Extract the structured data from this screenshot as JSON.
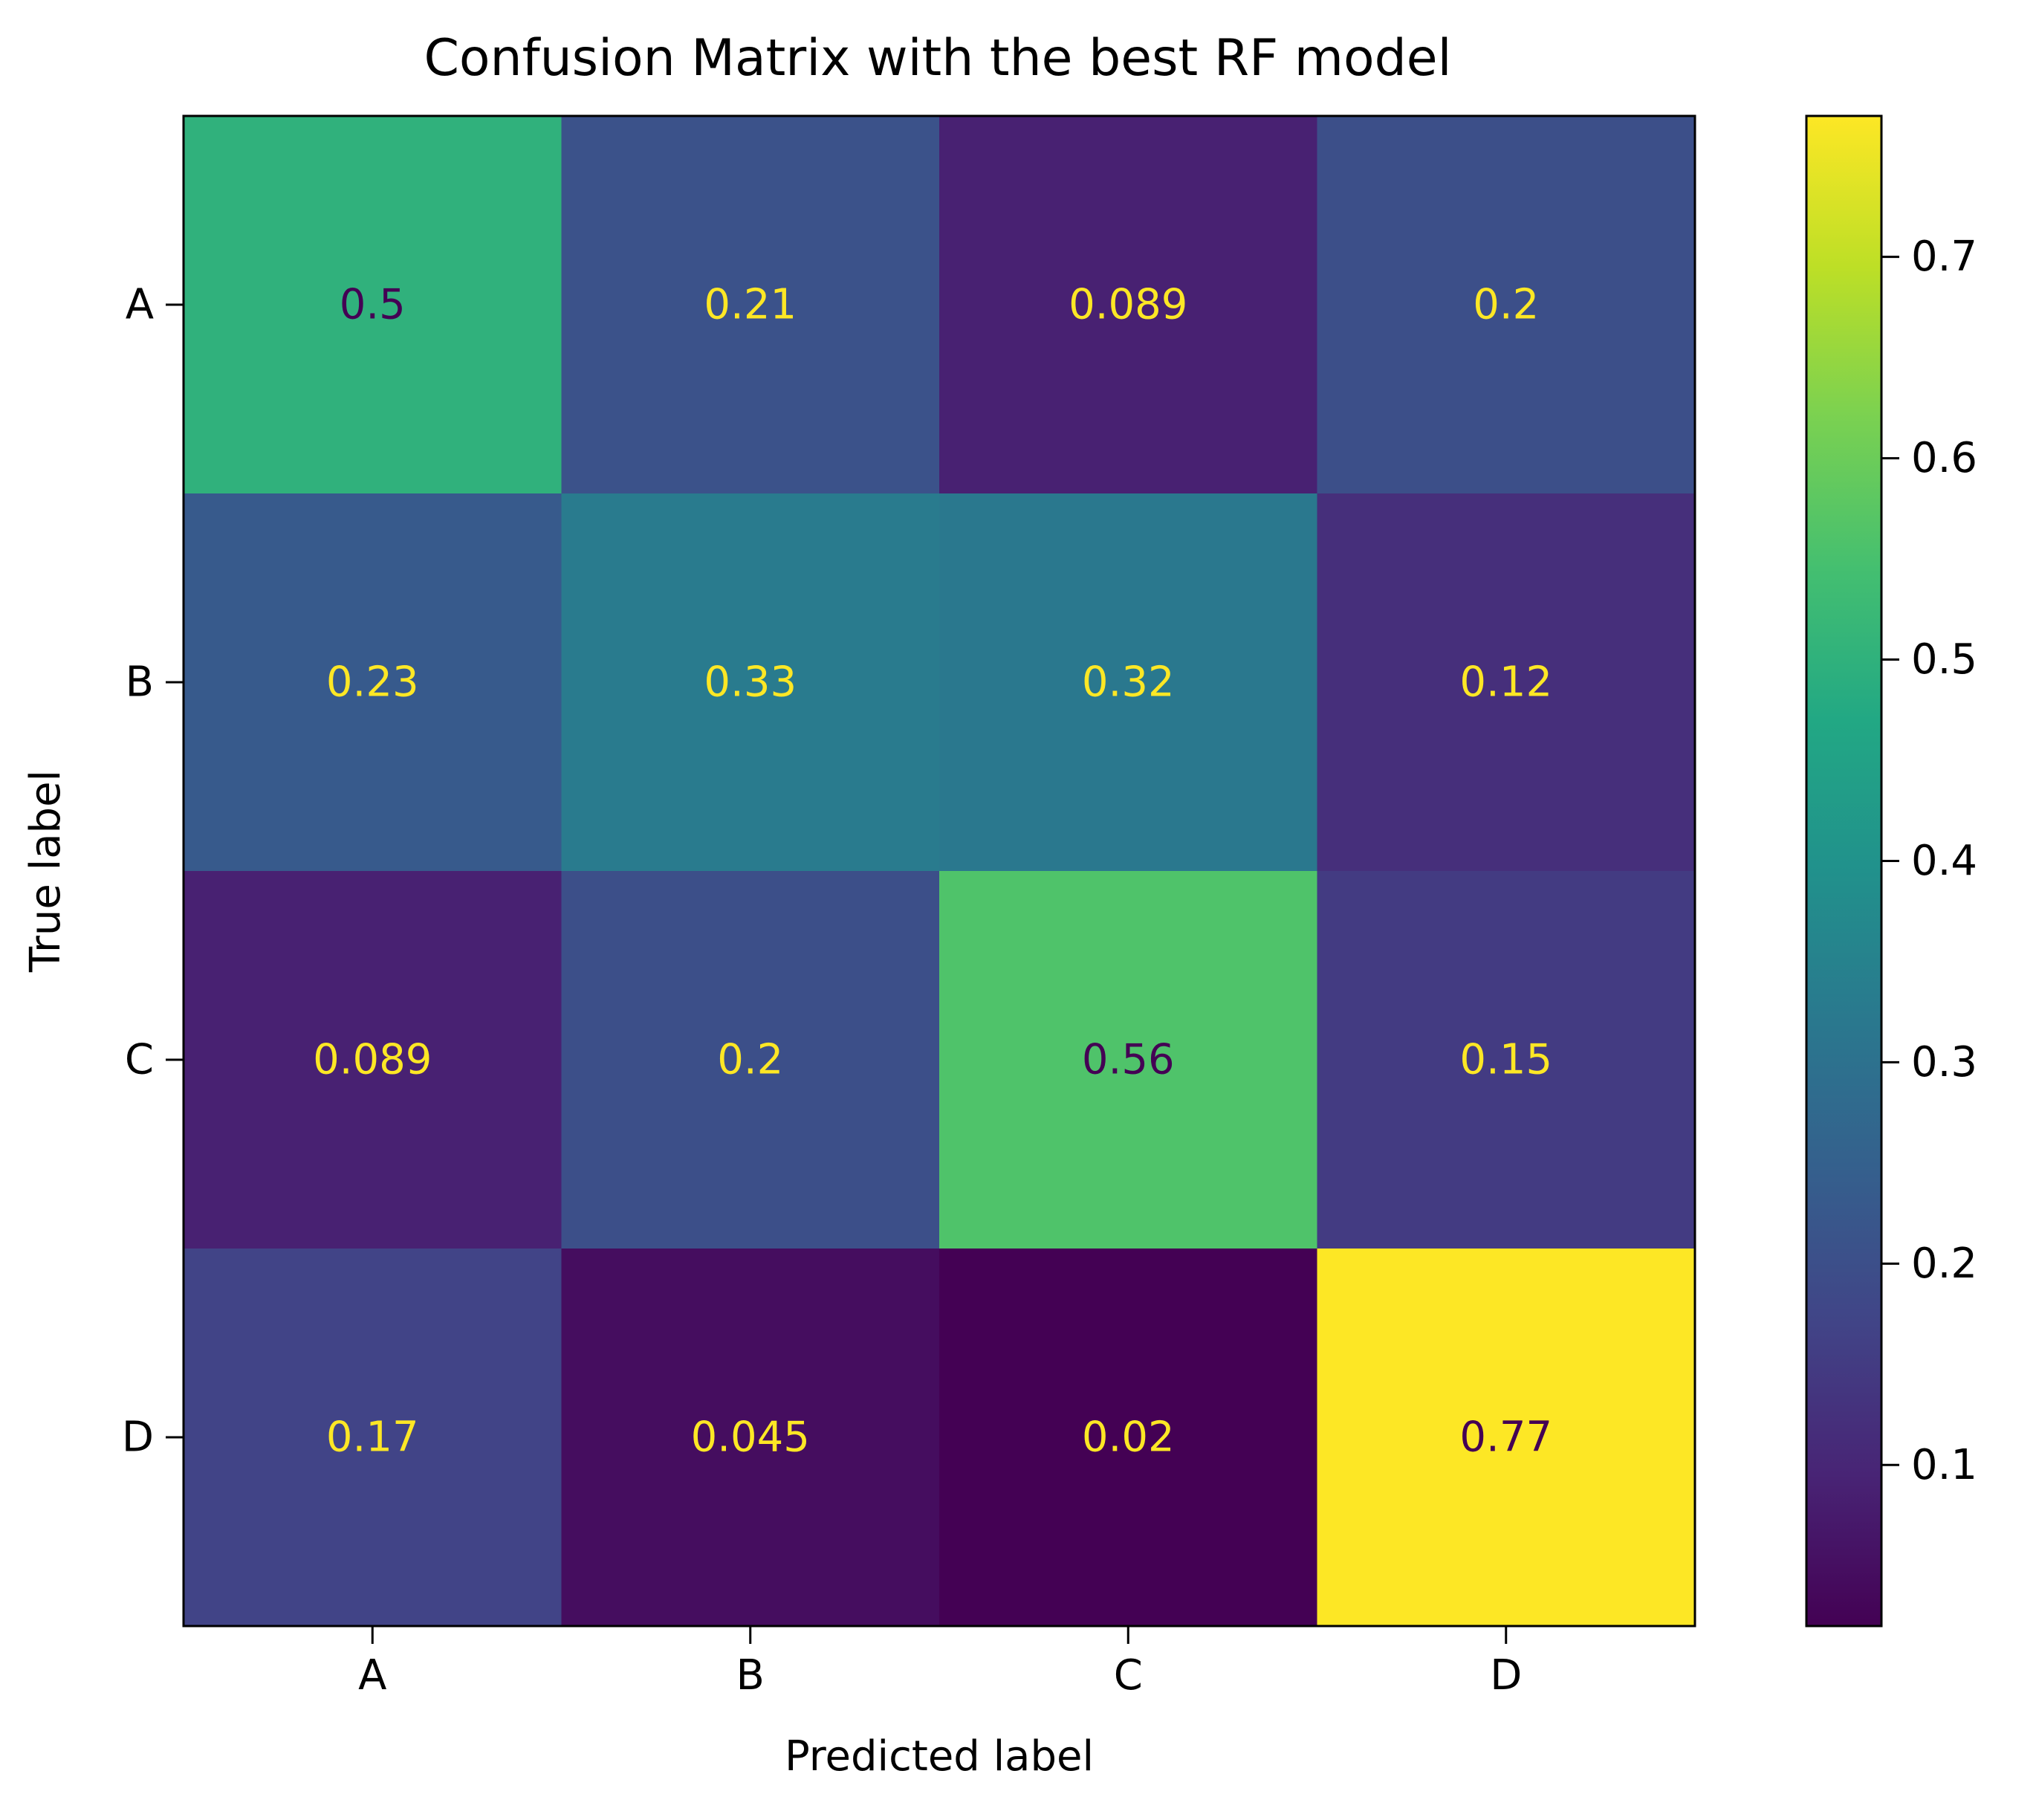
{
  "chart_data": {
    "type": "heatmap",
    "title": "Confusion Matrix with the best RF model",
    "xlabel": "Predicted label",
    "ylabel": "True label",
    "x_categories": [
      "A",
      "B",
      "C",
      "D"
    ],
    "y_categories": [
      "A",
      "B",
      "C",
      "D"
    ],
    "values": [
      [
        0.5,
        0.21,
        0.089,
        0.2
      ],
      [
        0.23,
        0.33,
        0.32,
        0.12
      ],
      [
        0.089,
        0.2,
        0.56,
        0.15
      ],
      [
        0.17,
        0.045,
        0.02,
        0.77
      ]
    ],
    "colormap": "viridis",
    "colorbar": {
      "range": [
        0.02,
        0.77
      ],
      "ticks": [
        "0.1",
        "0.2",
        "0.3",
        "0.4",
        "0.5",
        "0.6",
        "0.7"
      ]
    },
    "annotation_colors": {
      "dark": "#440154",
      "light": "#fde725"
    }
  }
}
